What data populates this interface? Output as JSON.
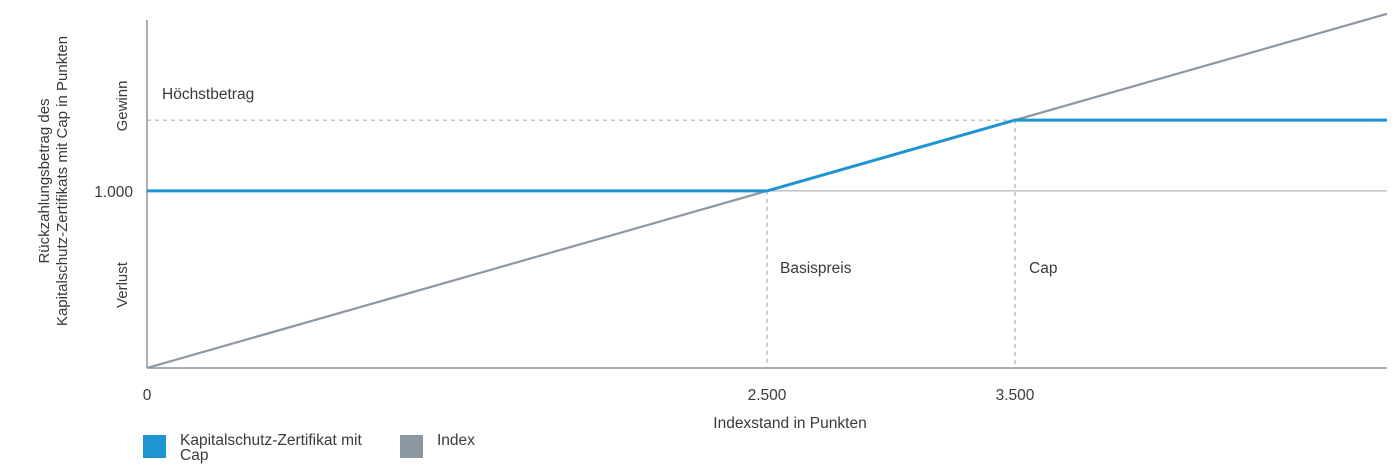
{
  "chart_data": {
    "type": "line",
    "xlabel": "Indexstand in Punkten",
    "ylabel": "Rückzahlungsbetrag des Kapitalschutz-Zertifikats mit Cap in Punkten",
    "x_ticks": [
      "0",
      "2.500",
      "3.500"
    ],
    "y_ticks": [
      "1.000"
    ],
    "y_region_labels": {
      "upper": "Gewinn",
      "lower": "Verlust"
    },
    "xlim": [
      0,
      5000
    ],
    "ylim": [
      0,
      2050
    ],
    "cap_level": 1400,
    "annotations": {
      "max_amount": "Höchstbetrag",
      "strike": "Basispreis",
      "cap": "Cap"
    },
    "series": [
      {
        "name": "Kapitalschutz-Zertifikat mit Cap",
        "color": "#1e94d2",
        "x": [
          0,
          2500,
          3500,
          5000
        ],
        "y": [
          1000,
          1000,
          1400,
          1400
        ]
      },
      {
        "name": "Index",
        "color": "#8b97a3",
        "x": [
          0,
          5000
        ],
        "y": [
          0,
          2000
        ]
      }
    ],
    "strike_x": 2500,
    "cap_x": 3500,
    "reference_y": 1000
  },
  "legend": {
    "item1": "Kapitalschutz-Zertifikat mit Cap",
    "item2": "Index"
  },
  "colors": {
    "axis": "#8b97a3",
    "guide": "#9aa6b2",
    "certificate": "#1e94d2",
    "index": "#8b97a3"
  }
}
